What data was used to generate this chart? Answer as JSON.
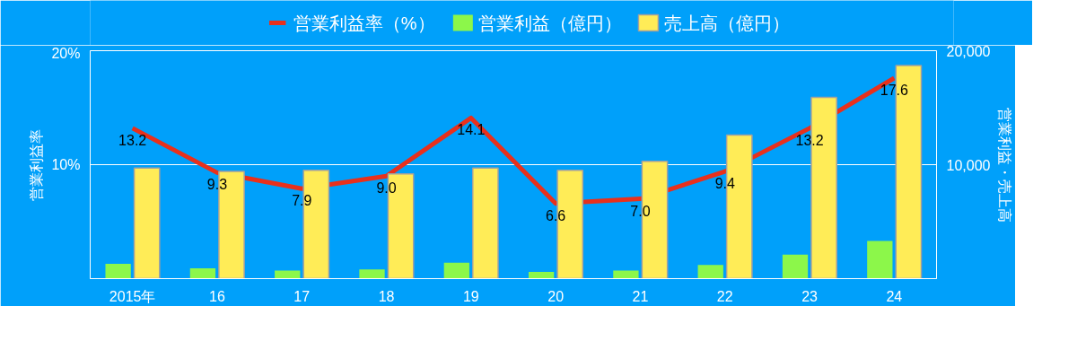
{
  "chart_data": {
    "type": "bar",
    "categories": [
      "2015年",
      "16",
      "17",
      "18",
      "19",
      "20",
      "21",
      "22",
      "23",
      "24"
    ],
    "ylabel": "営業利益率",
    "y2label": "営業利益・売上高",
    "ylim": [
      0,
      20
    ],
    "yticks": [
      {
        "value": 0,
        "label": null
      },
      {
        "value": 10,
        "label": "10%"
      },
      {
        "value": 20,
        "label": "20%"
      }
    ],
    "y2lim": [
      0,
      20000
    ],
    "y2ticks": [
      {
        "value": 0,
        "label": null
      },
      {
        "value": 10000,
        "label": "10,000"
      },
      {
        "value": 20000,
        "label": "20,000"
      }
    ],
    "grid": "y",
    "legend": "top",
    "series": [
      {
        "name": "営業利益率（%）",
        "type": "line",
        "color": "#e8301c",
        "values": [
          13.2,
          9.3,
          7.9,
          9.0,
          14.1,
          6.6,
          7.0,
          9.4,
          13.2,
          17.6
        ],
        "value_labels": [
          "13.2",
          "9.3",
          "7.9",
          "9.0",
          "14.1",
          "6.6",
          "7.0",
          "9.4",
          "13.2",
          "17.6"
        ]
      },
      {
        "name": "営業利益（億円）",
        "axis": "y2",
        "color": "#8cf74a",
        "values": [
          1300,
          900,
          700,
          800,
          1400,
          600,
          700,
          1200,
          2100,
          3300
        ]
      },
      {
        "name": "売上高（億円）",
        "axis": "y2",
        "color": "#ffec57",
        "values": [
          9700,
          9400,
          9500,
          9200,
          9700,
          9500,
          10300,
          12600,
          15900,
          18700
        ]
      }
    ]
  }
}
